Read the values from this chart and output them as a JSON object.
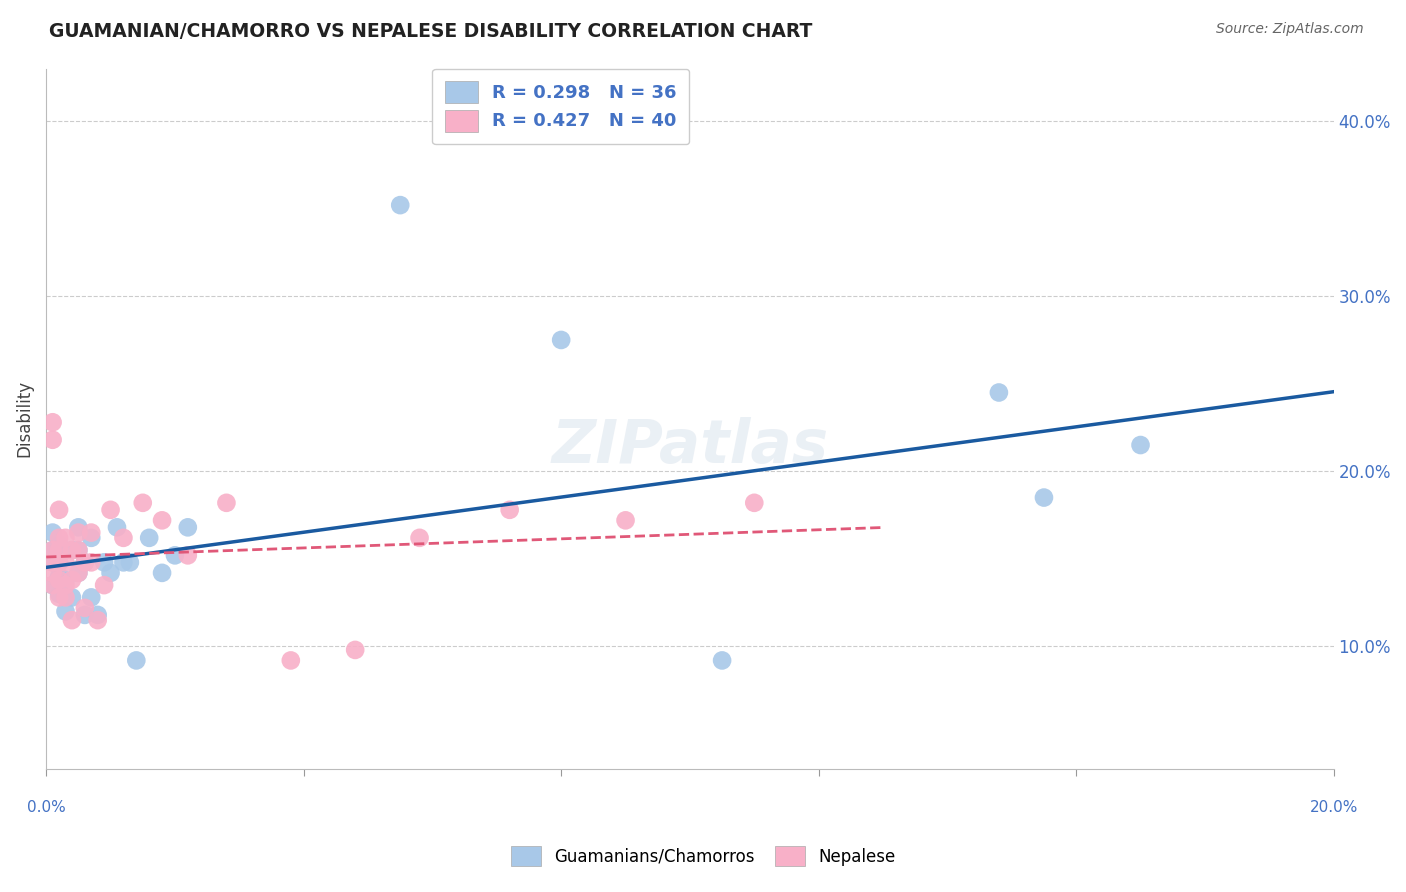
{
  "title": "GUAMANIAN/CHAMORRO VS NEPALESE DISABILITY CORRELATION CHART",
  "source": "Source: ZipAtlas.com",
  "ylabel": "Disability",
  "xlim": [
    0.0,
    0.2
  ],
  "ylim": [
    0.03,
    0.43
  ],
  "ytick_vals": [
    0.1,
    0.2,
    0.3,
    0.4
  ],
  "ytick_labels": [
    "10.0%",
    "20.0%",
    "30.0%",
    "40.0%"
  ],
  "guamanian_R": 0.298,
  "guamanian_N": 36,
  "nepalese_R": 0.427,
  "nepalese_N": 40,
  "guamanian_color": "#a8c8e8",
  "nepalese_color": "#f8b0c8",
  "guamanian_line_color": "#1a5aa0",
  "nepalese_line_color": "#e05878",
  "guamanian_x": [
    0.001,
    0.001,
    0.001,
    0.001,
    0.002,
    0.002,
    0.002,
    0.002,
    0.003,
    0.003,
    0.004,
    0.004,
    0.005,
    0.005,
    0.005,
    0.006,
    0.006,
    0.007,
    0.007,
    0.008,
    0.009,
    0.01,
    0.011,
    0.012,
    0.013,
    0.014,
    0.016,
    0.018,
    0.02,
    0.022,
    0.055,
    0.08,
    0.105,
    0.148,
    0.155,
    0.17
  ],
  "guamanian_y": [
    0.135,
    0.148,
    0.155,
    0.165,
    0.13,
    0.14,
    0.148,
    0.158,
    0.12,
    0.138,
    0.128,
    0.155,
    0.142,
    0.155,
    0.168,
    0.118,
    0.148,
    0.128,
    0.162,
    0.118,
    0.148,
    0.142,
    0.168,
    0.148,
    0.148,
    0.092,
    0.162,
    0.142,
    0.152,
    0.168,
    0.352,
    0.275,
    0.092,
    0.245,
    0.185,
    0.215
  ],
  "nepalese_x": [
    0.001,
    0.001,
    0.001,
    0.001,
    0.001,
    0.001,
    0.002,
    0.002,
    0.002,
    0.002,
    0.002,
    0.002,
    0.003,
    0.003,
    0.003,
    0.003,
    0.004,
    0.004,
    0.004,
    0.005,
    0.005,
    0.005,
    0.006,
    0.006,
    0.007,
    0.007,
    0.008,
    0.009,
    0.01,
    0.012,
    0.015,
    0.018,
    0.022,
    0.028,
    0.038,
    0.048,
    0.058,
    0.072,
    0.09,
    0.11
  ],
  "nepalese_y": [
    0.135,
    0.142,
    0.148,
    0.155,
    0.218,
    0.228,
    0.128,
    0.138,
    0.148,
    0.155,
    0.162,
    0.178,
    0.128,
    0.135,
    0.148,
    0.162,
    0.115,
    0.138,
    0.155,
    0.142,
    0.155,
    0.165,
    0.122,
    0.148,
    0.148,
    0.165,
    0.115,
    0.135,
    0.178,
    0.162,
    0.182,
    0.172,
    0.152,
    0.182,
    0.092,
    0.098,
    0.162,
    0.178,
    0.172,
    0.182
  ],
  "nepalese_line_intercept": 0.148,
  "nepalese_line_slope": 0.38,
  "guamanian_line_intercept": 0.128,
  "guamanian_line_slope": 0.52
}
